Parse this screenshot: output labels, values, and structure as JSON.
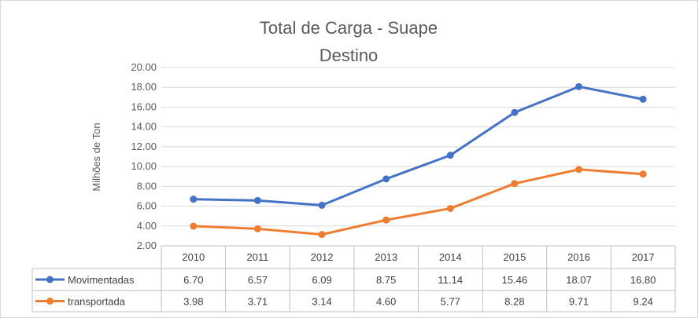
{
  "chart_data": {
    "type": "line",
    "title": "Total de Carga - Suape",
    "subtitle": "Destino",
    "ylabel": "Milhões de Ton",
    "xlabel": "",
    "ylim": [
      2.0,
      20.0
    ],
    "y_ticks": [
      "2.00",
      "4.00",
      "6.00",
      "8.00",
      "10.00",
      "12.00",
      "14.00",
      "16.00",
      "18.00",
      "20.00"
    ],
    "grid": true,
    "legend": "data-table",
    "categories": [
      "2010",
      "2011",
      "2012",
      "2013",
      "2014",
      "2015",
      "2016",
      "2017"
    ],
    "series": [
      {
        "name": "Movimentadas",
        "color": "#4472c4",
        "values": [
          6.7,
          6.57,
          6.09,
          8.75,
          11.14,
          15.46,
          18.07,
          16.8
        ],
        "labels": [
          "6.70",
          "6.57",
          "6.09",
          "8.75",
          "11.14",
          "15.46",
          "18.07",
          "16.80"
        ]
      },
      {
        "name": "transportada",
        "color": "#ed7d31",
        "values": [
          3.98,
          3.71,
          3.14,
          4.6,
          5.77,
          8.28,
          9.71,
          9.24
        ],
        "labels": [
          "3.98",
          "3.71",
          "3.14",
          "4.60",
          "5.77",
          "8.28",
          "9.71",
          "9.24"
        ]
      }
    ]
  }
}
